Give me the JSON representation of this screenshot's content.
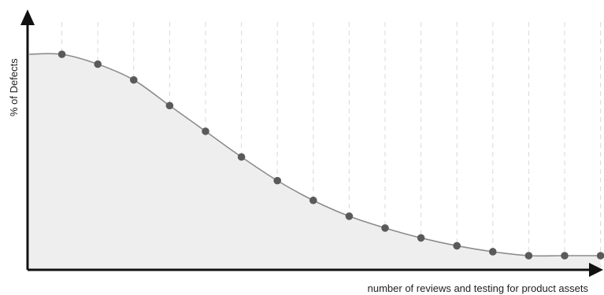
{
  "chart_data": {
    "type": "area",
    "title": "",
    "xlabel": "number of reviews and testing for product assets",
    "ylabel": "% of Defects",
    "x": [
      1,
      2,
      3,
      4,
      5,
      6,
      7,
      8,
      9,
      10,
      11,
      12,
      13,
      14,
      15,
      16
    ],
    "series": [
      {
        "values": [
          100,
          95,
          87,
          74,
          61,
          48,
          36,
          26,
          18,
          12,
          7,
          3,
          0,
          -2,
          -2,
          -2
        ]
      }
    ],
    "xlim": [
      0,
      16
    ],
    "ylim": [
      -10,
      100
    ],
    "grid": "vertical-dashed",
    "legend": "none",
    "colors": {
      "line": "#8c8c8c",
      "fill": "#eeeeee",
      "marker": "#5a5a5a",
      "axis": "#111111",
      "grid": "#d8d8d8"
    }
  }
}
